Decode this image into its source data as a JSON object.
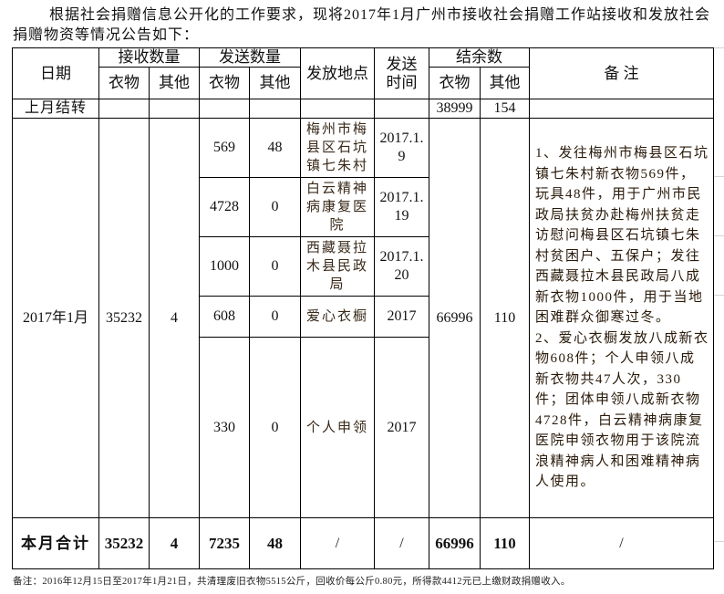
{
  "intro": "根据社会捐赠信息公开化的工作要求，现将2017年1月广州市接收社会捐赠工作站接收和发放社会捐赠物资等情况公告如下：",
  "headers": {
    "date": "日期",
    "received": "接收数量",
    "sent": "发送数量",
    "location": "发放地点",
    "send_time": "发送时间",
    "balance": "结余数",
    "remark": "备 注",
    "clothes": "衣物",
    "other": "其他"
  },
  "carryover": {
    "label": "上月结转",
    "balance_clothes": "38999",
    "balance_other": "154"
  },
  "month": {
    "label": "2017年1月",
    "received_clothes": "35232",
    "received_other": "4",
    "balance_clothes": "66996",
    "balance_other": "110",
    "remark": "1、发往梅州市梅县区石坑镇七朱村新衣物569件，玩具48件，用于广州市民政局扶贫办赴梅州扶贫走访慰问梅县区石坑镇七朱村贫困户、五保户；发往西藏聂拉木县民政局八成新衣物1000件，用于当地困难群众御寒过冬。\n2、爱心衣橱发放八成新衣物608件；个人申领八成新衣物共47人次，330件；团体申领八成新衣物4728件，白云精神病康复医院申领衣物用于该院流浪精神病人和困难精神病人使用。",
    "rows": [
      {
        "sent_clothes": "569",
        "sent_other": "48",
        "location": "梅州市梅县区石坑镇七朱村",
        "time": "2017.1.9"
      },
      {
        "sent_clothes": "4728",
        "sent_other": "0",
        "location": "白云精神病康复医院",
        "time": "2017.1.19"
      },
      {
        "sent_clothes": "1000",
        "sent_other": "0",
        "location": "西藏聂拉木县民政局",
        "time": "2017.1.20"
      },
      {
        "sent_clothes": "608",
        "sent_other": "0",
        "location": "爱心衣橱",
        "time": "2017"
      },
      {
        "sent_clothes": "330",
        "sent_other": "0",
        "location": "个人申领",
        "time": "2017"
      }
    ]
  },
  "total": {
    "label": "本月合计",
    "received_clothes": "35232",
    "received_other": "4",
    "sent_clothes": "7235",
    "sent_other": "48",
    "location": "/",
    "time": "/",
    "balance_clothes": "66996",
    "balance_other": "110",
    "remark": "/"
  },
  "footer": "备注：2016年12月15日至2017年1月21日，共清理废旧衣物5515公斤，回收价每公斤0.80元，所得款4412元已上缴财政捐赠收入。"
}
